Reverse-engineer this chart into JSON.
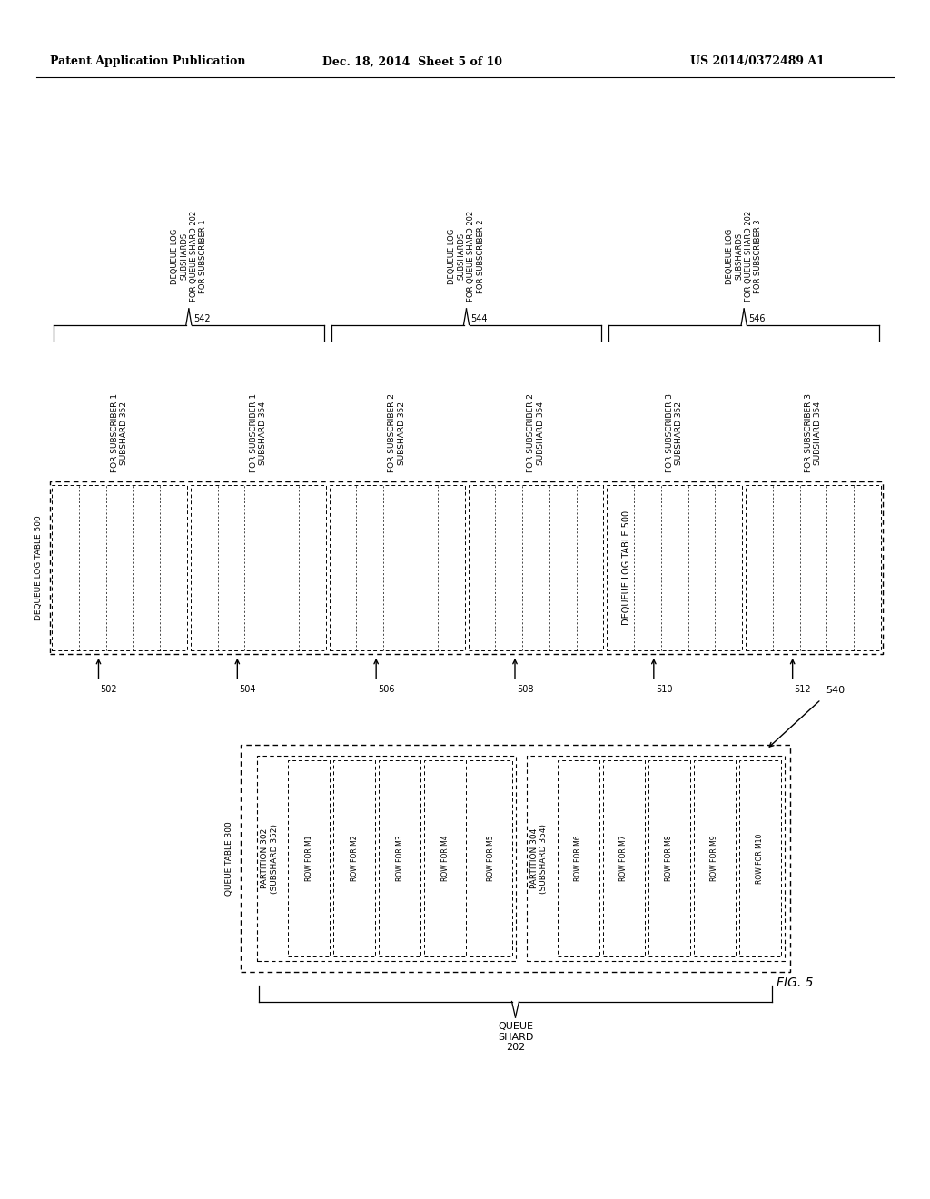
{
  "header_left": "Patent Application Publication",
  "header_center": "Dec. 18, 2014  Sheet 5 of 10",
  "header_right": "US 2014/0372489 A1",
  "fig_label": "FIG. 5",
  "bg_color": "#ffffff",
  "top_diagram": {
    "outer_box_label": "DEQUEUE LOG TABLE 500",
    "columns": [
      {
        "id": "502",
        "label": "FOR SUBSCRIBER 1\nSUBSHARD 352"
      },
      {
        "id": "504",
        "label": "FOR SUBSCRIBER 1\nSUBSHARD 354"
      },
      {
        "id": "506",
        "label": "FOR SUBSCRIBER 2\nSUBSHARD 352"
      },
      {
        "id": "508",
        "label": "FOR SUBSCRIBER 2\nSUBSHARD 354"
      },
      {
        "id": "510",
        "label": "FOR SUBSCRIBER 3\nSUBSHARD 352"
      },
      {
        "id": "512",
        "label": "FOR SUBSCRIBER 3\nSUBSHARD 354"
      }
    ],
    "braces": [
      {
        "cols": [
          0,
          1
        ],
        "id": "542",
        "label": "DEQUEUE LOG\nSUBSHARDS\nFOR QUEUE SHARD 202\nFOR SUBSCRIBER 1"
      },
      {
        "cols": [
          2,
          3
        ],
        "id": "544",
        "label": "DEQUEUE LOG\nSUBSHARDS\nFOR QUEUE SHARD 202\nFOR SUBSCRIBER 2"
      },
      {
        "cols": [
          4,
          5
        ],
        "id": "546",
        "label": "DEQUEUE LOG\nSUBSHARDS\nFOR QUEUE SHARD 202\nFOR SUBSCRIBER 3"
      }
    ]
  },
  "bottom_diagram": {
    "outer_box_label": "QUEUE TABLE 300",
    "partitions": [
      {
        "label": "PARTITION 302\n(SUBSHARD 352)",
        "rows": [
          "ROW FOR M1",
          "ROW FOR M2",
          "ROW FOR M3",
          "ROW FOR M4",
          "ROW FOR M5"
        ]
      },
      {
        "label": "PARTITION 304\n(SUBSHARD 354)",
        "rows": [
          "ROW FOR M6",
          "ROW FOR M7",
          "ROW FOR M8",
          "ROW FOR M9",
          "ROW FOR M10"
        ]
      }
    ],
    "brace_label": "QUEUE\nSHARD\n202",
    "arrow_label": "540"
  }
}
